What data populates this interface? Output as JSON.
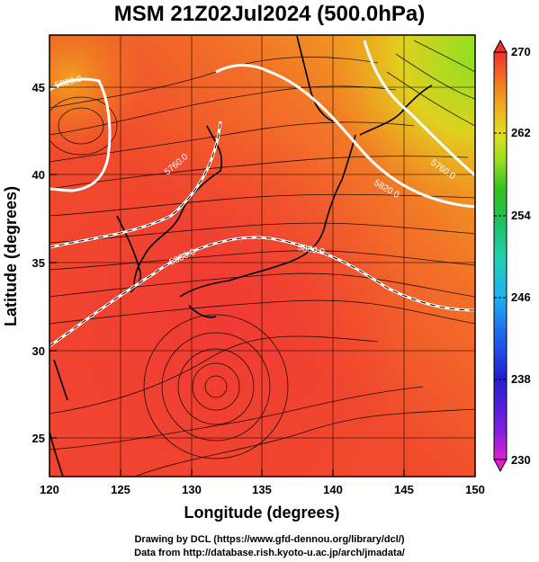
{
  "title": "MSM 21Z02Jul2024 (500.0hPa)",
  "axes": {
    "xlabel": "Longitude (degrees)",
    "ylabel": "Latitude  (degrees)",
    "x_ticks": [
      "120",
      "125",
      "130",
      "135",
      "140",
      "145",
      "150"
    ],
    "y_ticks": [
      "45",
      "40",
      "35",
      "30",
      "25"
    ]
  },
  "colorbar": {
    "ticks": [
      "270",
      "262",
      "254",
      "246",
      "238",
      "230"
    ],
    "range": [
      230,
      270
    ],
    "colors": [
      "#e020d0",
      "#8020e0",
      "#2020d0",
      "#2060f0",
      "#20b0f0",
      "#20d0b0",
      "#20c060",
      "#30c020",
      "#a0e020",
      "#e0e020",
      "#f0b020",
      "#f08020",
      "#f05020",
      "#f03030"
    ]
  },
  "contour_labels": [
    "5820.0",
    "5760.0",
    "5820.0",
    "5760.0",
    "5880.0",
    "5880.0"
  ],
  "footer": {
    "line1": "Drawing by DCL (https://www.gfd-dennou.org/library/dcl/)",
    "line2": "Data from http://database.rish.kyoto-u.ac.jp/arch/jmadata/"
  }
}
